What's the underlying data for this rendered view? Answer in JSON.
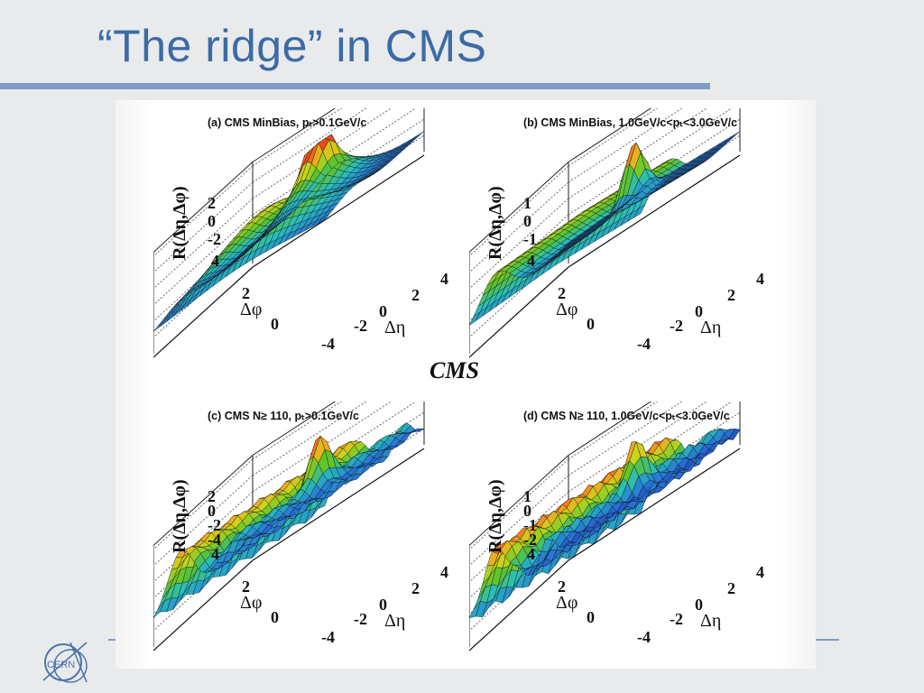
{
  "slide": {
    "title": "“The ridge” in CMS",
    "figure_mark": "CMS",
    "logo_text": "CERN"
  },
  "panels": [
    {
      "id": "a",
      "title": "(a) CMS MinBias, pₜ>0.1GeV/c",
      "ztick": [
        "2",
        "0",
        "-2"
      ],
      "variant": "minbias-low"
    },
    {
      "id": "b",
      "title": "(b) CMS MinBias, 1.0GeV/c<pₜ<3.0GeV/c",
      "ztick": [
        "1",
        "0",
        "-1"
      ],
      "variant": "minbias-high"
    },
    {
      "id": "c",
      "title": "(c) CMS N≥ 110, pₜ>0.1GeV/c",
      "ztick": [
        "2",
        "0",
        "-2",
        "-4"
      ],
      "variant": "highmult-low"
    },
    {
      "id": "d",
      "title": "(d) CMS N≥ 110, 1.0GeV/c<pₜ<3.0GeV/c",
      "ztick": [
        "1",
        "0",
        "-1",
        "-2"
      ],
      "variant": "highmult-high"
    }
  ],
  "axes": {
    "z_label": "R(Δη,Δφ)",
    "phi_label": "Δφ",
    "eta_label": "Δη",
    "phi_ticks": [
      "4",
      "2",
      "0"
    ],
    "eta_ticks": [
      "4",
      "2",
      "0",
      "-2",
      "-4"
    ]
  },
  "colors": {
    "title": "#3a6ba5",
    "rule": "#7f9cc4",
    "peak": "#e01010",
    "ridge": "#f0a020",
    "mid": "#5fbf2a",
    "low": "#2f6ad0",
    "deep": "#1a2a8a"
  }
}
